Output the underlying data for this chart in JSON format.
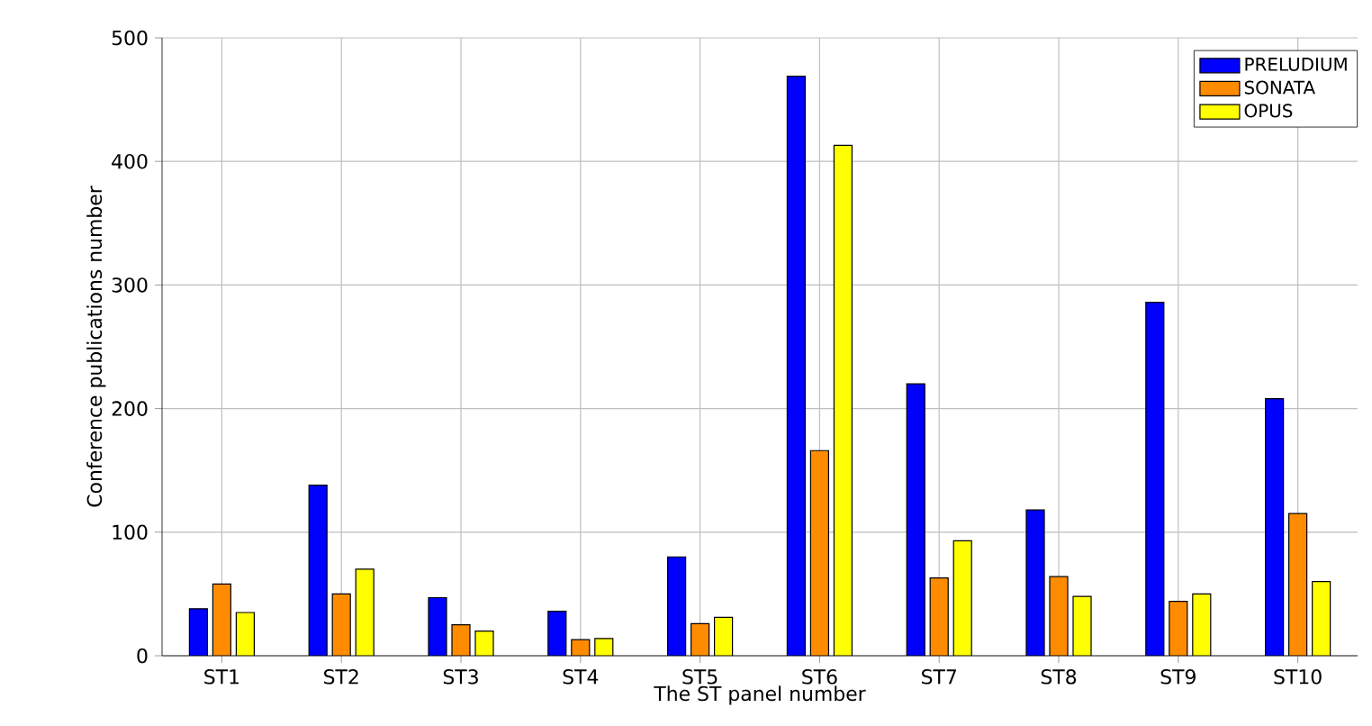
{
  "chart_data": {
    "type": "bar",
    "xlabel": "The ST panel number",
    "ylabel": "Conference publications number",
    "categories": [
      "ST1",
      "ST2",
      "ST3",
      "ST4",
      "ST5",
      "ST6",
      "ST7",
      "ST8",
      "ST9",
      "ST10"
    ],
    "series": [
      {
        "name": "PRELUDIUM",
        "color": "#0000ff",
        "values": [
          38,
          138,
          47,
          36,
          80,
          469,
          220,
          118,
          286,
          208
        ]
      },
      {
        "name": "SONATA",
        "color": "#ff8c00",
        "values": [
          58,
          50,
          25,
          13,
          26,
          166,
          63,
          64,
          44,
          115
        ]
      },
      {
        "name": "OPUS",
        "color": "#ffff00",
        "values": [
          35,
          70,
          20,
          14,
          31,
          413,
          93,
          48,
          50,
          60
        ]
      }
    ],
    "ylim": [
      0,
      500
    ],
    "yticks": [
      0,
      100,
      200,
      300,
      400,
      500
    ],
    "grid": true,
    "legend": "top right"
  }
}
